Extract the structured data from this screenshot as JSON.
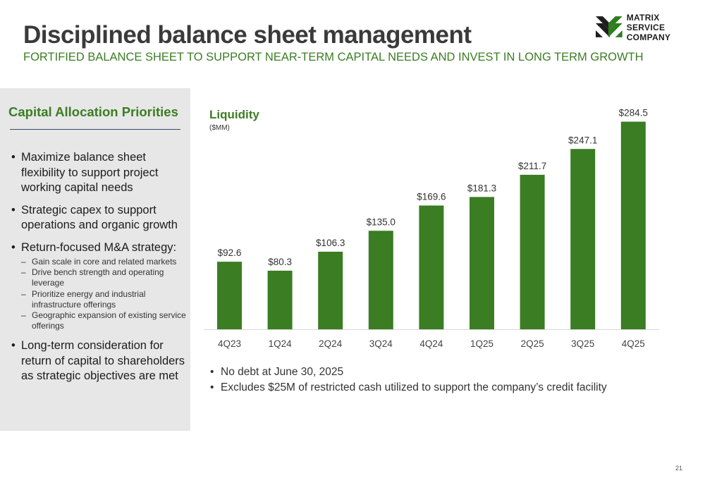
{
  "slide": {
    "title": "Disciplined balance sheet management",
    "subtitle": "FORTIFIED BALANCE SHEET TO SUPPORT NEAR-TERM CAPITAL NEEDS AND INVEST IN LONG TERM GROWTH",
    "page_number": "21"
  },
  "logo": {
    "line1": "MATRIX SERVICE",
    "line2": "COMPANY",
    "color": "#2e7d1e"
  },
  "panel": {
    "heading": "Capital Allocation Priorities",
    "bullets": [
      {
        "text": "Maximize balance sheet flexibility to support project working capital needs"
      },
      {
        "text": "Strategic capex to support operations and organic growth"
      },
      {
        "text": "Return-focused M&A strategy:",
        "sub": [
          "Gain scale in core and related markets",
          "Drive bench strength and operating leverage",
          "Prioritize energy and industrial infrastructure offerings",
          "Geographic expansion of  existing service offerings"
        ]
      },
      {
        "text": "Long-term consideration for return of capital to shareholders as strategic objectives are met"
      }
    ]
  },
  "chart_title": "Liquidity",
  "chart_unit": "($MM)",
  "chart_data": {
    "type": "bar",
    "categories": [
      "4Q23",
      "1Q24",
      "2Q24",
      "3Q24",
      "4Q24",
      "1Q25",
      "2Q25",
      "3Q25",
      "4Q25"
    ],
    "values": [
      92.6,
      80.3,
      106.3,
      135.0,
      169.6,
      181.3,
      211.7,
      247.1,
      284.5
    ],
    "labels": [
      "$92.6",
      "$80.3",
      "$106.3",
      "$135.0",
      "$169.6",
      "$181.3",
      "$211.7",
      "$247.1",
      "$284.5"
    ],
    "ylim": [
      0,
      300
    ],
    "bar_color": "#3a7d23",
    "grid": false
  },
  "notes": [
    "No debt at June 30, 2025",
    "Excludes $25M of restricted cash utilized to support the company’s credit facility"
  ]
}
